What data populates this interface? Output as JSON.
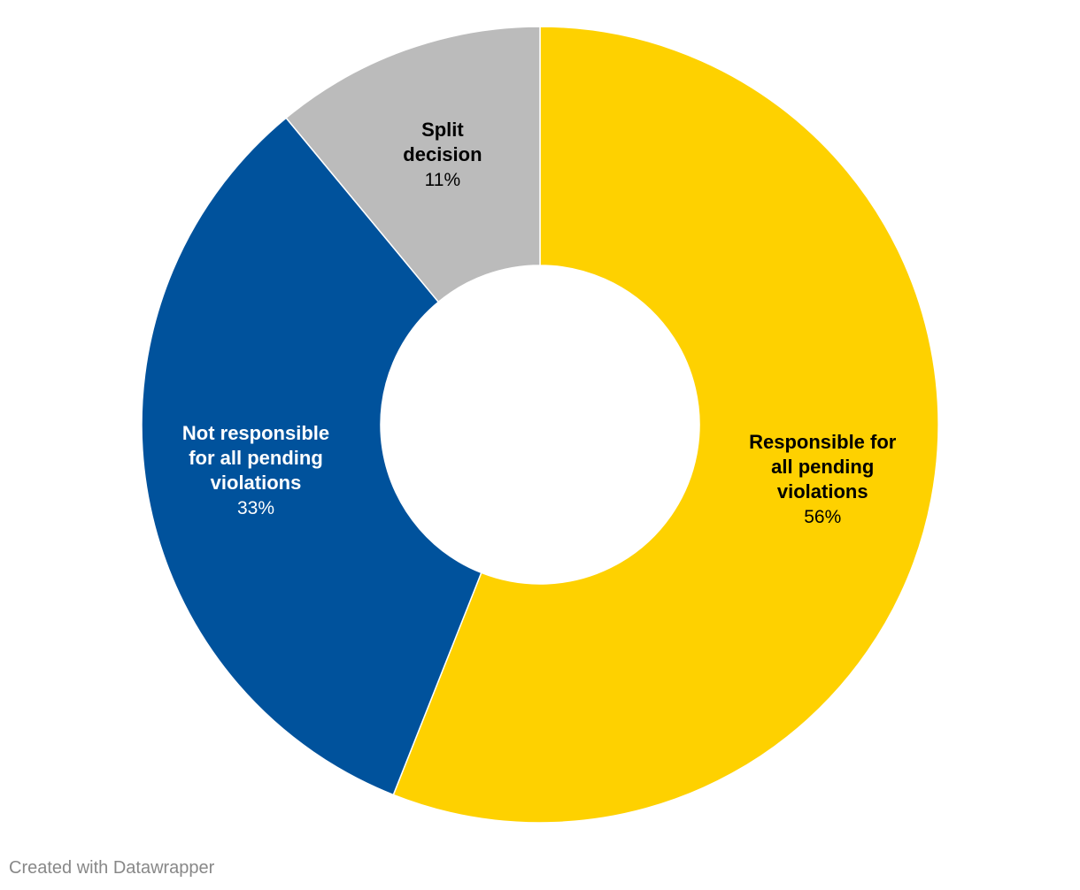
{
  "chart_data": {
    "type": "pie",
    "variant": "donut",
    "slices": [
      {
        "label_lines": [
          "Responsible for",
          "all pending",
          "violations"
        ],
        "value": 56,
        "value_label": "56%",
        "color": "#fed100",
        "text_color": "#000000"
      },
      {
        "label_lines": [
          "Not responsible",
          "for all pending",
          "violations"
        ],
        "value": 33,
        "value_label": "33%",
        "color": "#00529c",
        "text_color": "#ffffff"
      },
      {
        "label_lines": [
          "Split",
          "decision"
        ],
        "value": 11,
        "value_label": "11%",
        "color": "#bbbbbb",
        "text_color": "#000000"
      }
    ],
    "legend": "none",
    "labels_position": "on-slice"
  },
  "footer": {
    "credit": "Created with Datawrapper"
  }
}
